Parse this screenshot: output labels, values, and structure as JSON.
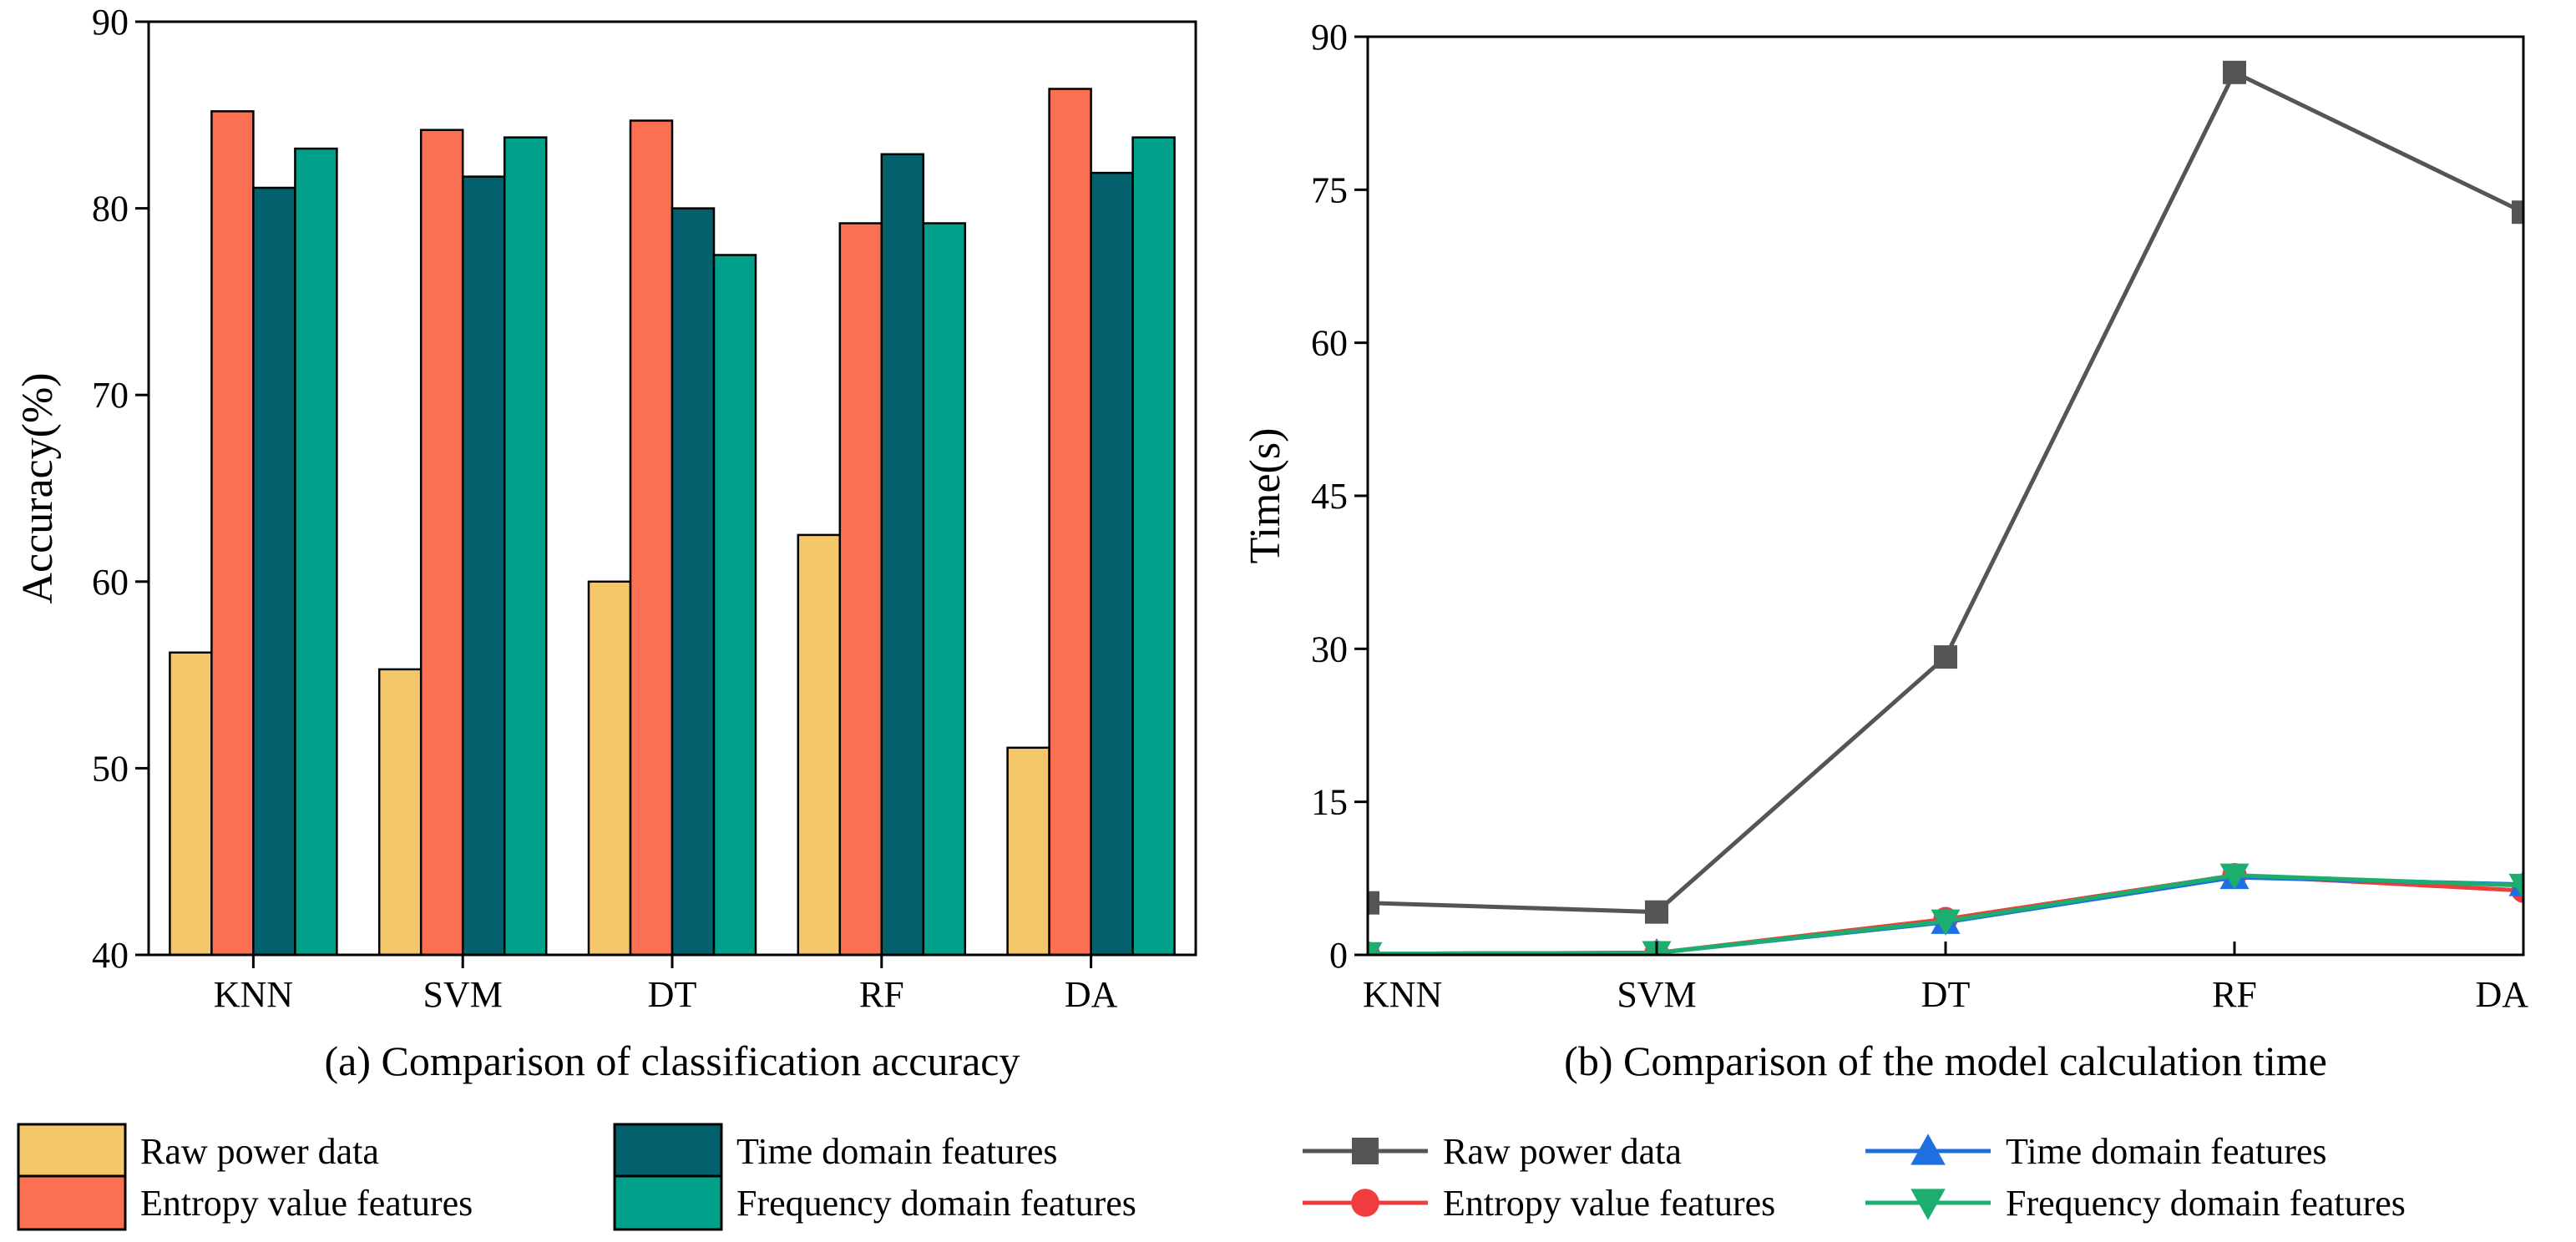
{
  "chart_data": [
    {
      "type": "bar",
      "caption": "(a) Comparison of classification accuracy",
      "ylabel": "Accuracy(%)",
      "xlabel": "",
      "ylim": [
        40,
        90
      ],
      "yticks": [
        40,
        50,
        60,
        70,
        80,
        90
      ],
      "categories": [
        "KNN",
        "SVM",
        "DT",
        "RF",
        "DA"
      ],
      "series": [
        {
          "name": "Raw power data",
          "color": "#F5C76B",
          "values": [
            56.2,
            55.3,
            60.0,
            62.5,
            51.1
          ]
        },
        {
          "name": "Entropy value features",
          "color": "#FB7052",
          "values": [
            85.2,
            84.2,
            84.7,
            79.2,
            86.4
          ]
        },
        {
          "name": "Time domain features",
          "color": "#03606D",
          "values": [
            81.1,
            81.7,
            80.0,
            82.9,
            81.9
          ]
        },
        {
          "name": "Frequency domain features",
          "color": "#00A08A",
          "values": [
            83.2,
            83.8,
            77.5,
            79.2,
            83.8
          ]
        }
      ],
      "legend_position": "bottom"
    },
    {
      "type": "line",
      "caption": "(b) Comparison of the model calculation time",
      "ylabel": "Time(s)",
      "xlabel": "",
      "ylim": [
        0,
        90
      ],
      "yticks": [
        0,
        15,
        30,
        45,
        60,
        75,
        90
      ],
      "categories": [
        "KNN",
        "SVM",
        "DT",
        "RF",
        "DA"
      ],
      "series": [
        {
          "name": "Raw power data",
          "color": "#555555",
          "marker": "square",
          "values": [
            5.1,
            4.2,
            29.2,
            86.5,
            72.8
          ]
        },
        {
          "name": "Entropy value features",
          "color": "#F03C3C",
          "marker": "circle",
          "values": [
            0.1,
            0.2,
            3.5,
            7.8,
            6.3
          ]
        },
        {
          "name": "Time domain features",
          "color": "#1F6FE0",
          "marker": "triangle-up",
          "values": [
            0.1,
            0.2,
            3.2,
            7.6,
            6.9
          ]
        },
        {
          "name": "Frequency domain features",
          "color": "#1BAE6E",
          "marker": "triangle-down",
          "values": [
            0.1,
            0.2,
            3.3,
            7.8,
            6.8
          ]
        }
      ],
      "legend_position": "bottom"
    }
  ]
}
